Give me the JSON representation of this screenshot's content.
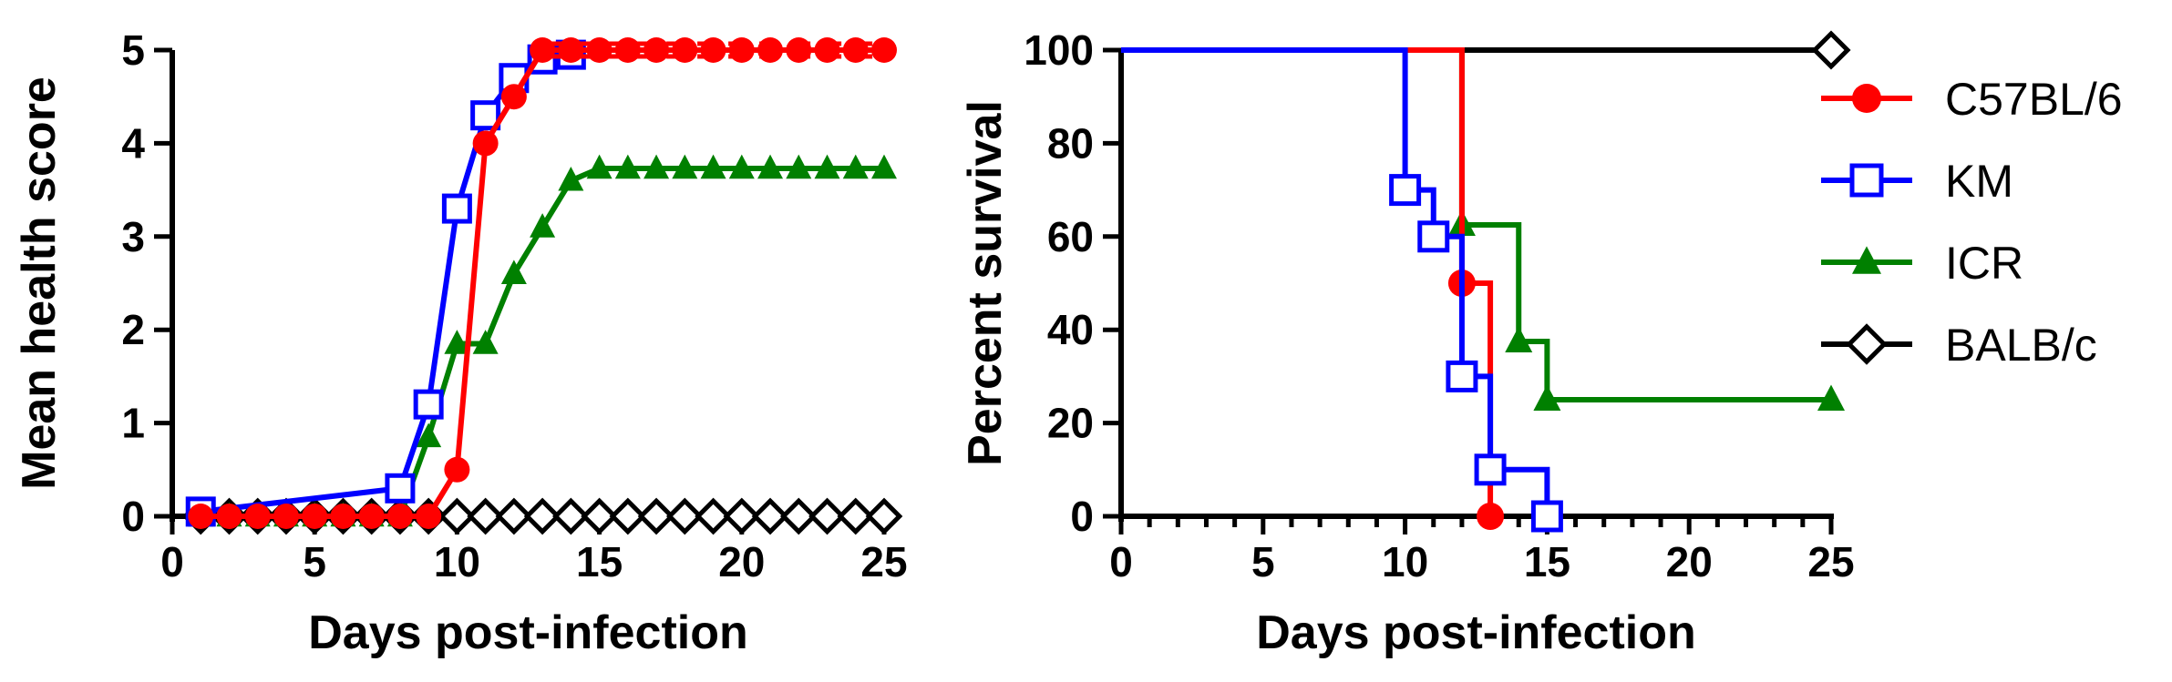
{
  "legend": [
    {
      "name": "C57BL/6",
      "color": "#ff0000",
      "marker": "circle"
    },
    {
      "name": "KM",
      "color": "#0000ff",
      "marker": "square-open"
    },
    {
      "name": "ICR",
      "color": "#008000",
      "marker": "triangle"
    },
    {
      "name": "BALB/c",
      "color": "#000000",
      "marker": "diamond-open"
    }
  ],
  "chart_data": [
    {
      "type": "line",
      "xlabel": "Days post-infection",
      "ylabel": "Mean health score",
      "xlim": [
        0,
        25
      ],
      "ylim": [
        0,
        5
      ],
      "xticks": [
        0,
        5,
        10,
        15,
        20,
        25
      ],
      "yticks": [
        0,
        1,
        2,
        3,
        4,
        5
      ],
      "series": [
        {
          "name": "C57BL/6",
          "color": "#ff0000",
          "marker": "circle",
          "dashed": true,
          "x": [
            1,
            2,
            3,
            4,
            5,
            6,
            7,
            8,
            9,
            10,
            11,
            12,
            13,
            14,
            15,
            16,
            17,
            18,
            19,
            20,
            21,
            22,
            23,
            24,
            25
          ],
          "y": [
            0,
            0,
            0,
            0,
            0,
            0,
            0,
            0,
            0,
            0.5,
            4,
            4.5,
            5,
            5,
            5,
            5,
            5,
            5,
            5,
            5,
            5,
            5,
            5,
            5,
            5
          ]
        },
        {
          "name": "KM",
          "color": "#0000ff",
          "marker": "square-open",
          "dashed": false,
          "x": [
            1,
            8,
            9,
            10,
            11,
            12,
            13,
            14
          ],
          "y": [
            0.05,
            0.3,
            1.2,
            3.3,
            4.3,
            4.7,
            4.9,
            4.95
          ]
        },
        {
          "name": "ICR",
          "color": "#008000",
          "marker": "triangle",
          "dashed": false,
          "x": [
            1,
            2,
            3,
            4,
            5,
            6,
            7,
            8,
            9,
            10,
            11,
            12,
            13,
            14,
            15,
            16,
            17,
            18,
            19,
            20,
            21,
            22,
            23,
            24,
            25
          ],
          "y": [
            0,
            0,
            0,
            0,
            0,
            0,
            0,
            0,
            0.85,
            1.85,
            1.85,
            2.6,
            3.1,
            3.6,
            3.73,
            3.73,
            3.73,
            3.73,
            3.73,
            3.73,
            3.73,
            3.73,
            3.73,
            3.73,
            3.73
          ]
        },
        {
          "name": "BALB/c",
          "color": "#000000",
          "marker": "diamond-open",
          "dashed": false,
          "x": [
            1,
            2,
            3,
            4,
            5,
            6,
            7,
            8,
            9,
            10,
            11,
            12,
            13,
            14,
            15,
            16,
            17,
            18,
            19,
            20,
            21,
            22,
            23,
            24,
            25
          ],
          "y": [
            0,
            0,
            0,
            0,
            0,
            0,
            0,
            0,
            0,
            0,
            0,
            0,
            0,
            0,
            0,
            0,
            0,
            0,
            0,
            0,
            0,
            0,
            0,
            0,
            0
          ]
        }
      ]
    },
    {
      "type": "line",
      "xlabel": "Days post-infection",
      "ylabel": "Percent survival",
      "xlim": [
        0,
        25
      ],
      "ylim": [
        0,
        100
      ],
      "xticks": [
        0,
        5,
        10,
        15,
        20,
        25
      ],
      "yticks": [
        0,
        20,
        40,
        60,
        80,
        100
      ],
      "grid": false,
      "legend_position": "right",
      "series": [
        {
          "name": "C57BL/6",
          "color": "#ff0000",
          "marker": "circle",
          "steps": [
            [
              0,
              100
            ],
            [
              12,
              100
            ],
            [
              12,
              50
            ],
            [
              13,
              50
            ],
            [
              13,
              0
            ]
          ],
          "markers": [
            [
              12,
              50
            ],
            [
              13,
              0
            ]
          ]
        },
        {
          "name": "KM",
          "color": "#0000ff",
          "marker": "square-open",
          "steps": [
            [
              0,
              100
            ],
            [
              10,
              100
            ],
            [
              10,
              70
            ],
            [
              11,
              70
            ],
            [
              11,
              60
            ],
            [
              12,
              60
            ],
            [
              12,
              30
            ],
            [
              13,
              30
            ],
            [
              13,
              10
            ],
            [
              15,
              10
            ],
            [
              15,
              0
            ]
          ],
          "markers": [
            [
              10,
              70
            ],
            [
              11,
              60
            ],
            [
              12,
              30
            ],
            [
              13,
              10
            ],
            [
              15,
              0
            ]
          ]
        },
        {
          "name": "ICR",
          "color": "#008000",
          "marker": "triangle",
          "steps": [
            [
              0,
              100
            ],
            [
              12,
              100
            ],
            [
              12,
              62.5
            ],
            [
              14,
              62.5
            ],
            [
              14,
              37.5
            ],
            [
              15,
              37.5
            ],
            [
              15,
              25
            ],
            [
              25,
              25
            ]
          ],
          "markers": [
            [
              12,
              62.5
            ],
            [
              14,
              37.5
            ],
            [
              15,
              25
            ],
            [
              25,
              25
            ]
          ]
        },
        {
          "name": "BALB/c",
          "color": "#000000",
          "marker": "diamond-open",
          "steps": [
            [
              0,
              100
            ],
            [
              25,
              100
            ]
          ],
          "markers": [
            [
              25,
              100
            ]
          ]
        }
      ]
    }
  ]
}
